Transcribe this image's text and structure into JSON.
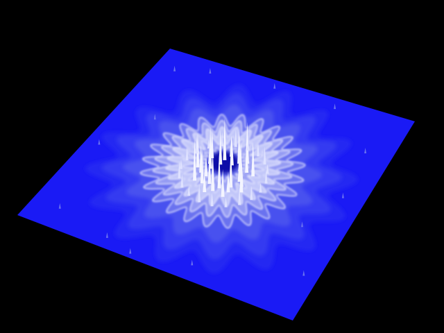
{
  "scene": {
    "background_color": "#000000",
    "plane_color": "#1a1af5",
    "ring_colors": [
      "#2a2ef2",
      "#3a40f0",
      "#5058ee",
      "#6e76f0",
      "#9aa0f4",
      "#c8ccfa",
      "#ffffff"
    ],
    "outer_petal_count": 16,
    "inner_petal_count": 24
  }
}
